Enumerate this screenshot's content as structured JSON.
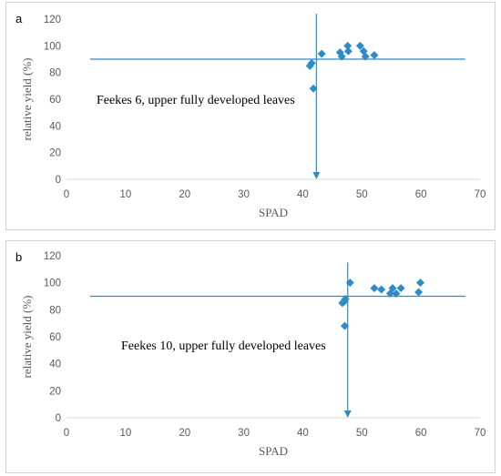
{
  "panels": [
    {
      "label": "a",
      "chart_data": {
        "type": "scatter",
        "title": "",
        "xlabel": "SPAD",
        "ylabel": "relative yield (%)",
        "xlim": [
          0,
          70
        ],
        "ylim": [
          0,
          120
        ],
        "xticks": [
          0,
          10,
          20,
          30,
          40,
          50,
          60,
          70
        ],
        "yticks": [
          0,
          20,
          40,
          60,
          80,
          100,
          120
        ],
        "grid": false,
        "marker_color": "#2E8BC9",
        "line_color": "#2E8BC9",
        "annotation": "Feekes 6, upper fully developed leaves",
        "horizontal_line": {
          "y": 90,
          "x_from": 4,
          "x_to": 67.5
        },
        "vertical_line": {
          "x": 42.3,
          "y_from": 0,
          "y_to": 124,
          "arrow": "down"
        },
        "points": [
          {
            "x": 41.2,
            "y": 85
          },
          {
            "x": 41.5,
            "y": 87
          },
          {
            "x": 41.8,
            "y": 68
          },
          {
            "x": 43.2,
            "y": 94
          },
          {
            "x": 46.3,
            "y": 95
          },
          {
            "x": 46.6,
            "y": 92
          },
          {
            "x": 47.6,
            "y": 100
          },
          {
            "x": 47.7,
            "y": 96
          },
          {
            "x": 49.7,
            "y": 100
          },
          {
            "x": 50.3,
            "y": 96
          },
          {
            "x": 50.6,
            "y": 92
          },
          {
            "x": 52.1,
            "y": 93
          }
        ]
      }
    },
    {
      "label": "b",
      "chart_data": {
        "type": "scatter",
        "title": "",
        "xlabel": "SPAD",
        "ylabel": "relative yield (%)",
        "xlim": [
          0,
          70
        ],
        "ylim": [
          0,
          120
        ],
        "xticks": [
          0,
          10,
          20,
          30,
          40,
          50,
          60,
          70
        ],
        "yticks": [
          0,
          20,
          40,
          60,
          80,
          100,
          120
        ],
        "grid": false,
        "marker_color": "#2E8BC9",
        "line_color": "#2E8BC9",
        "annotation": "Feekes 10, upper fully developed leaves",
        "horizontal_line": {
          "y": 90,
          "x_from": 4,
          "x_to": 67.5
        },
        "vertical_line": {
          "x": 47.6,
          "y_from": 0,
          "y_to": 115,
          "arrow": "down"
        },
        "points": [
          {
            "x": 46.7,
            "y": 85
          },
          {
            "x": 47.0,
            "y": 86
          },
          {
            "x": 47.2,
            "y": 88
          },
          {
            "x": 47.1,
            "y": 68
          },
          {
            "x": 48.0,
            "y": 100
          },
          {
            "x": 52.1,
            "y": 96
          },
          {
            "x": 53.3,
            "y": 95
          },
          {
            "x": 54.8,
            "y": 92
          },
          {
            "x": 55.2,
            "y": 96
          },
          {
            "x": 55.8,
            "y": 92
          },
          {
            "x": 56.6,
            "y": 96
          },
          {
            "x": 59.6,
            "y": 93
          },
          {
            "x": 59.9,
            "y": 100
          }
        ]
      }
    }
  ]
}
